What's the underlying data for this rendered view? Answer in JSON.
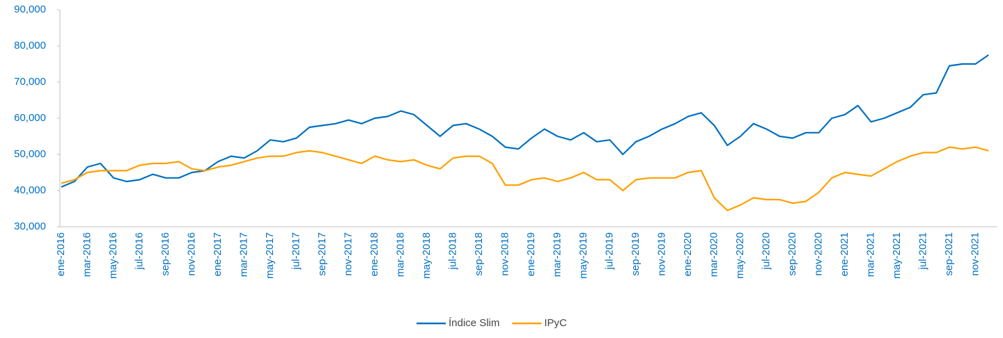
{
  "chart_data": {
    "type": "line",
    "categories": [
      "ene-2016",
      null,
      "mar-2016",
      null,
      "may-2016",
      null,
      "jul-2016",
      null,
      "sep-2016",
      null,
      "nov-2016",
      null,
      "ene-2017",
      null,
      "mar-2017",
      null,
      "may-2017",
      null,
      "jul-2017",
      null,
      "sep-2017",
      null,
      "nov-2017",
      null,
      "ene-2018",
      null,
      "mar-2018",
      null,
      "may-2018",
      null,
      "jul-2018",
      null,
      "sep-2018",
      null,
      "nov-2018",
      null,
      "ene-2019",
      null,
      "mar-2019",
      null,
      "may-2019",
      null,
      "jul-2019",
      null,
      "sep-2019",
      null,
      "nov-2019",
      null,
      "ene-2020",
      null,
      "mar-2020",
      null,
      "may-2020",
      null,
      "jul-2020",
      null,
      "sep-2020",
      null,
      "nov-2020",
      null,
      "ene-2021",
      null,
      "mar-2021",
      null,
      "may-2021",
      null,
      "jul-2021",
      null,
      "sep-2021",
      null,
      "nov-2021",
      null
    ],
    "series": [
      {
        "name": "Índice Slim",
        "color": "#0070c0",
        "values": [
          41000,
          42500,
          46500,
          47500,
          43500,
          42500,
          43000,
          44500,
          43500,
          43500,
          45000,
          45500,
          48000,
          49500,
          49000,
          51000,
          54000,
          53500,
          54500,
          57500,
          58000,
          58500,
          59500,
          58500,
          60000,
          60500,
          62000,
          61000,
          58000,
          55000,
          58000,
          58500,
          57000,
          55000,
          52000,
          51500,
          54500,
          57000,
          55000,
          54000,
          56000,
          53500,
          54000,
          50000,
          53500,
          55000,
          57000,
          58500,
          60500,
          61500,
          58000,
          52500,
          55000,
          58500,
          57000,
          55000,
          54500,
          56000,
          56000,
          60000,
          61000,
          63500,
          59000,
          60000,
          61500,
          63000,
          66500,
          67000,
          74500,
          75000,
          75000,
          77500
        ]
      },
      {
        "name": "IPyC",
        "color": "#ffa000",
        "values": [
          42000,
          43000,
          45000,
          45500,
          45500,
          45500,
          47000,
          47500,
          47500,
          48000,
          46000,
          45500,
          46500,
          47000,
          48000,
          49000,
          49500,
          49500,
          50500,
          51000,
          50500,
          49500,
          48500,
          47500,
          49500,
          48500,
          48000,
          48500,
          47000,
          46000,
          49000,
          49500,
          49500,
          47500,
          41500,
          41500,
          43000,
          43500,
          42500,
          43500,
          45000,
          43000,
          43000,
          40000,
          43000,
          43500,
          43500,
          43500,
          45000,
          45500,
          38000,
          34500,
          36000,
          38000,
          37500,
          37500,
          36500,
          37000,
          39500,
          43500,
          45000,
          44500,
          44000,
          46000,
          48000,
          49500,
          50500,
          50500,
          52000,
          51500,
          52000,
          51000
        ]
      }
    ],
    "ylim": [
      30000,
      90000
    ],
    "yticks": [
      {
        "value": 30000,
        "label": "30,000"
      },
      {
        "value": 40000,
        "label": "40,000"
      },
      {
        "value": 50000,
        "label": "50,000"
      },
      {
        "value": 60000,
        "label": "60,000"
      },
      {
        "value": 70000,
        "label": "70,000"
      },
      {
        "value": 80000,
        "label": "80,000"
      },
      {
        "value": 90000,
        "label": "90,000"
      }
    ],
    "legend": "bottom"
  }
}
